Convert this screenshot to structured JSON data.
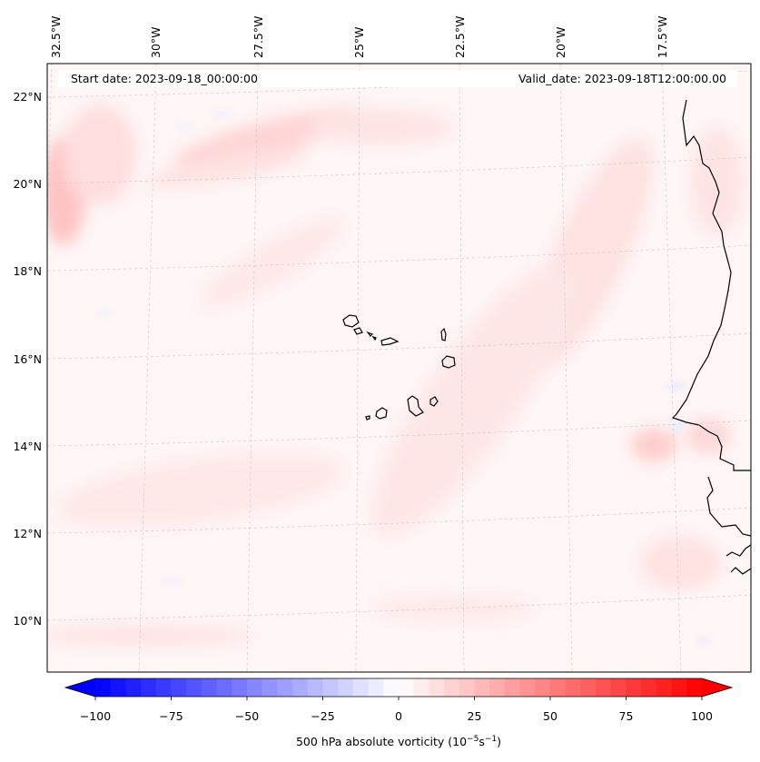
{
  "header": {
    "start_date": "Start date: 2023-09-18_00:00:00",
    "valid_date": "Valid_date: 2023-09-18T12:00:00.00"
  },
  "lon_labels": [
    "32.5°W",
    "30°W",
    "27.5°W",
    "25°W",
    "22.5°W",
    "20°W",
    "17.5°W"
  ],
  "lat_labels": [
    "22°N",
    "20°N",
    "18°N",
    "16°N",
    "14°N",
    "12°N",
    "10°N"
  ],
  "colorbar": {
    "ticks": [
      "−100",
      "−75",
      "−50",
      "−25",
      "0",
      "25",
      "50",
      "75",
      "100"
    ],
    "label": "500 hPa absolute vorticity (10",
    "label_exp1": "−5",
    "label_mid": "s",
    "label_exp2": "−1",
    "label_end": ")",
    "min": -100,
    "max": 100,
    "low_color": "#0000ff",
    "high_color": "#ff0000"
  }
}
